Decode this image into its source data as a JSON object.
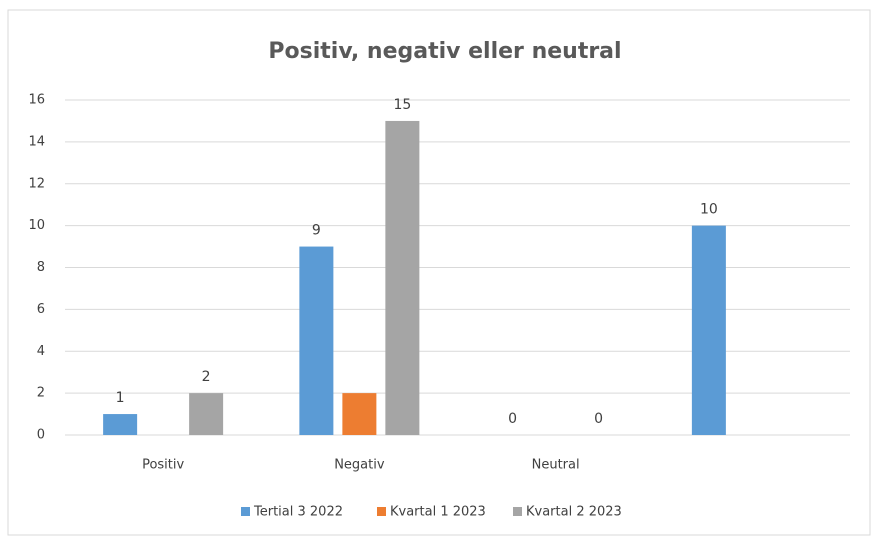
{
  "chart_data": {
    "type": "bar",
    "title": "Positiv, negativ eller neutral",
    "categories": [
      "Positiv",
      "Negativ",
      "Neutral",
      null
    ],
    "series": [
      {
        "name": "Tertial 3 2022",
        "color": "#5b9bd5",
        "values": [
          1,
          9,
          0,
          10
        ],
        "show_labels": true
      },
      {
        "name": "Kvartal 1 2023",
        "color": "#ed7d31",
        "values": [
          null,
          2,
          null,
          null
        ],
        "show_labels": false
      },
      {
        "name": "Kvartal 2 2023",
        "color": "#a5a5a5",
        "values": [
          2,
          15,
          0,
          null
        ],
        "show_labels": true
      }
    ],
    "ylim": [
      0,
      16
    ],
    "yticks": [
      0,
      2,
      4,
      6,
      8,
      10,
      12,
      14,
      16
    ],
    "grid": true,
    "legend": "bottom"
  }
}
